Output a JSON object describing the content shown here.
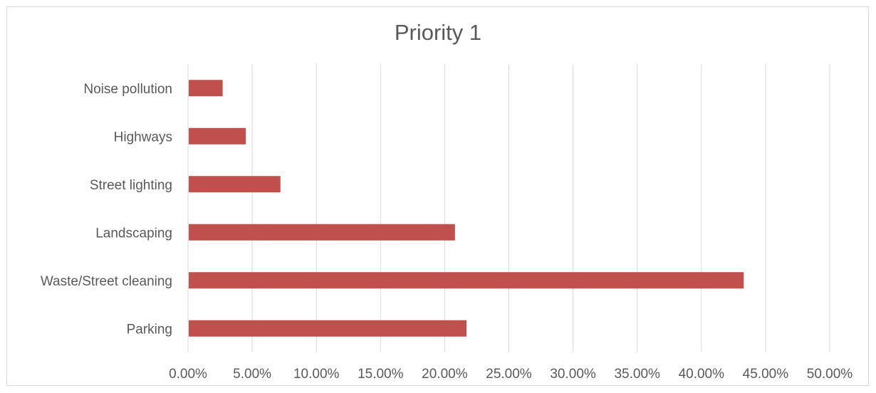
{
  "chart_data": {
    "type": "bar",
    "orientation": "horizontal",
    "title": "Priority 1",
    "categories": [
      "Parking",
      "Waste/Street cleaning",
      "Landscaping",
      "Street lighting",
      "Highways",
      "Noise pollution"
    ],
    "values": [
      0.217,
      0.433,
      0.208,
      0.072,
      0.045,
      0.027
    ],
    "xlim": [
      0,
      0.5
    ],
    "xticks": [
      0,
      0.05,
      0.1,
      0.15,
      0.2,
      0.25,
      0.3,
      0.35,
      0.4,
      0.45,
      0.5
    ],
    "xtick_labels": [
      "0.00%",
      "5.00%",
      "10.00%",
      "15.00%",
      "20.00%",
      "25.00%",
      "30.00%",
      "35.00%",
      "40.00%",
      "45.00%",
      "50.00%"
    ],
    "xlabel": "",
    "ylabel": "",
    "grid": "vertical",
    "legend": "none",
    "colors": {
      "bar": "#c0504d",
      "grid": "#d9d9d9",
      "text": "#595959"
    }
  }
}
